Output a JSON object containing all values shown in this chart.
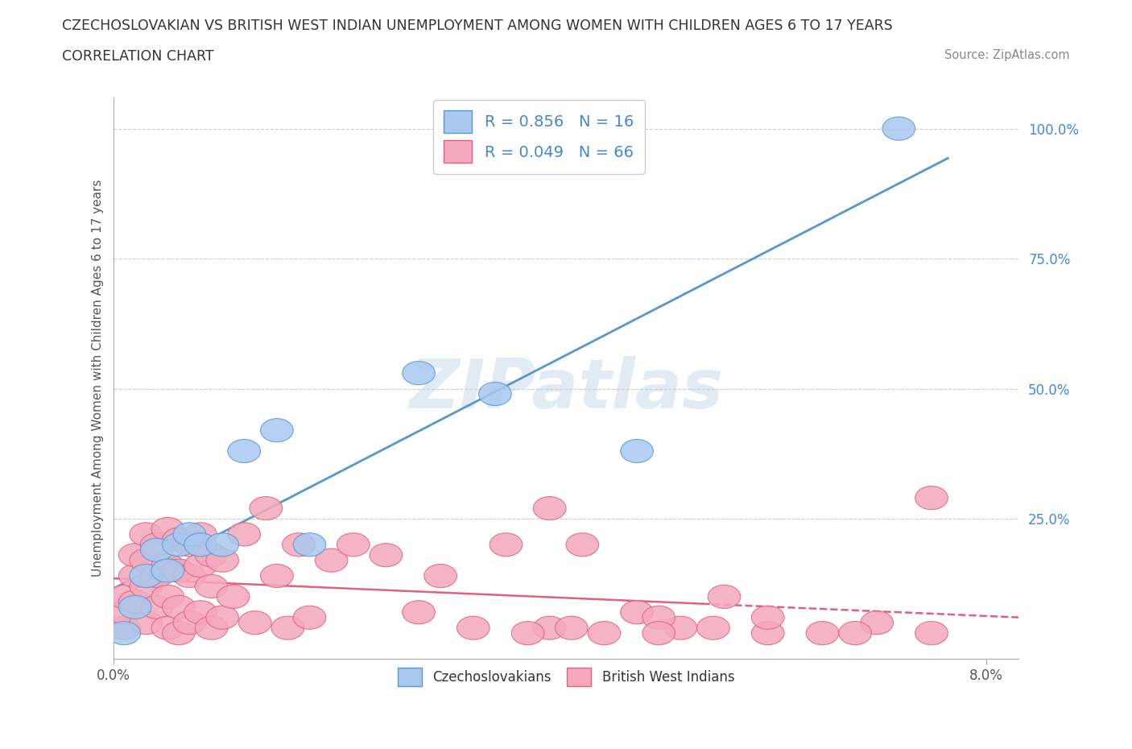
{
  "title": "CZECHOSLOVAKIAN VS BRITISH WEST INDIAN UNEMPLOYMENT AMONG WOMEN WITH CHILDREN AGES 6 TO 17 YEARS",
  "subtitle": "CORRELATION CHART",
  "source": "Source: ZipAtlas.com",
  "ylabel": "Unemployment Among Women with Children Ages 6 to 17 years",
  "watermark": "ZIPatlas",
  "czech_R": 0.856,
  "czech_N": 16,
  "bwi_R": 0.049,
  "bwi_N": 66,
  "czech_color": "#a8c8f0",
  "bwi_color": "#f5a8bc",
  "czech_edge_color": "#5599cc",
  "bwi_edge_color": "#e06080",
  "czech_line_color": "#5599cc",
  "bwi_line_color": "#e06080",
  "grid_color": "#cccccc",
  "background_color": "#ffffff",
  "right_tick_color": "#4488dd",
  "xlim": [
    0,
    0.083
  ],
  "ylim": [
    -0.02,
    1.06
  ],
  "x_tick_pos": [
    0.0,
    0.08
  ],
  "x_tick_labels": [
    "0.0%",
    "8.0%"
  ],
  "y_tick_pos": [
    0.25,
    0.5,
    0.75,
    1.0
  ],
  "y_tick_labels": [
    "25.0%",
    "50.0%",
    "75.0%",
    "100.0%"
  ],
  "czech_x": [
    0.001,
    0.002,
    0.003,
    0.004,
    0.005,
    0.006,
    0.007,
    0.008,
    0.01,
    0.012,
    0.015,
    0.018,
    0.028,
    0.035,
    0.048,
    0.072
  ],
  "czech_y": [
    0.03,
    0.08,
    0.14,
    0.19,
    0.15,
    0.2,
    0.22,
    0.2,
    0.2,
    0.38,
    0.42,
    0.2,
    0.53,
    0.49,
    0.38,
    1.0
  ],
  "bwi_x": [
    0.001,
    0.001,
    0.001,
    0.002,
    0.002,
    0.002,
    0.003,
    0.003,
    0.003,
    0.003,
    0.004,
    0.004,
    0.004,
    0.005,
    0.005,
    0.005,
    0.005,
    0.006,
    0.006,
    0.006,
    0.006,
    0.007,
    0.007,
    0.007,
    0.008,
    0.008,
    0.008,
    0.009,
    0.009,
    0.009,
    0.01,
    0.01,
    0.011,
    0.012,
    0.013,
    0.014,
    0.015,
    0.016,
    0.017,
    0.018,
    0.02,
    0.022,
    0.025,
    0.028,
    0.03,
    0.033,
    0.036,
    0.04,
    0.043,
    0.048,
    0.052,
    0.056,
    0.038,
    0.042,
    0.05,
    0.055,
    0.06,
    0.065,
    0.07,
    0.075,
    0.04,
    0.045,
    0.05,
    0.06,
    0.068,
    0.075
  ],
  "bwi_y": [
    0.04,
    0.07,
    0.1,
    0.09,
    0.14,
    0.18,
    0.05,
    0.12,
    0.17,
    0.22,
    0.08,
    0.14,
    0.2,
    0.04,
    0.1,
    0.16,
    0.23,
    0.03,
    0.08,
    0.15,
    0.21,
    0.05,
    0.14,
    0.2,
    0.07,
    0.16,
    0.22,
    0.04,
    0.12,
    0.18,
    0.06,
    0.17,
    0.1,
    0.22,
    0.05,
    0.27,
    0.14,
    0.04,
    0.2,
    0.06,
    0.17,
    0.2,
    0.18,
    0.07,
    0.14,
    0.04,
    0.2,
    0.04,
    0.2,
    0.07,
    0.04,
    0.1,
    0.03,
    0.04,
    0.06,
    0.04,
    0.03,
    0.03,
    0.05,
    0.29,
    0.27,
    0.03,
    0.03,
    0.06,
    0.03,
    0.03
  ]
}
